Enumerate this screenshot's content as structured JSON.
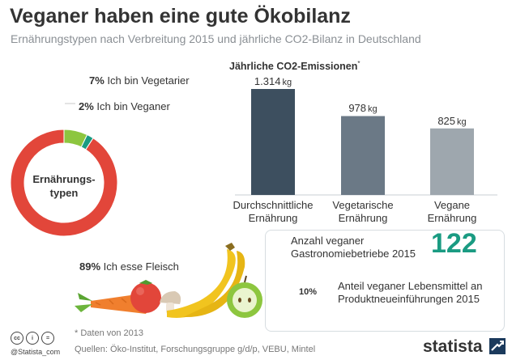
{
  "header": {
    "title": "Veganer haben eine gute Ökobilanz",
    "subtitle": "Ernährungstypen nach Verbreitung 2015 und jährliche CO2-Bilanz in Deutschland"
  },
  "chart_data": [
    {
      "type": "pie",
      "subtype": "donut",
      "center_label_line1": "Ernährungs-",
      "center_label_line2": "typen",
      "slices": [
        {
          "percent_label": "89%",
          "label": "Ich esse Fleisch",
          "value": 89,
          "color": "#e2463a"
        },
        {
          "percent_label": "7%",
          "label": "Ich bin Vegetarier",
          "value": 7,
          "color": "#8dc63f"
        },
        {
          "percent_label": "2%",
          "label": "Ich bin Veganer",
          "value": 2,
          "color": "#1a9b82"
        }
      ]
    },
    {
      "type": "bar",
      "title": "Jährliche CO2-Emissionen",
      "title_marker": "*",
      "categories_line1": [
        "Durchschnittliche",
        "Vegetarische",
        "Vegane"
      ],
      "categories_line2": [
        "Ernährung",
        "Ernährung",
        "Ernährung"
      ],
      "values": [
        1314,
        978,
        825
      ],
      "value_labels": [
        "1.314",
        "978",
        "825"
      ],
      "unit": "kg",
      "colors": [
        "#3d4f5f",
        "#6b7986",
        "#9ea7ae"
      ]
    }
  ],
  "stats": {
    "count_label": "Anzahl veganer Gastronomiebetriebe 2015",
    "count_value": "122",
    "share_value": 10,
    "share_text": "10%",
    "share_label": "Anteil veganer Lebensmittel an Produktneueinführungen 2015",
    "accent": "#1a9b82"
  },
  "footer": {
    "footnote": "* Daten von 2013",
    "sources": "Quellen: Öko-Institut, Forschungsgruppe g/d/p, VEBU, Mintel",
    "twitter": "@Statista_com",
    "brand": "statista",
    "cc_icons": [
      "cc",
      "i",
      "="
    ]
  }
}
